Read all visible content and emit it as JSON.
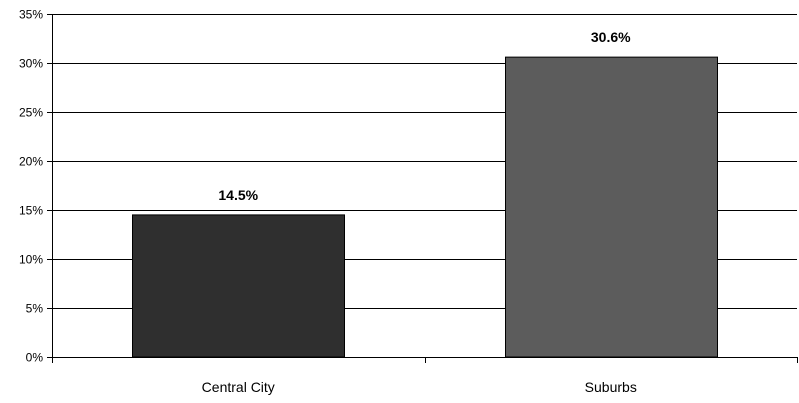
{
  "chart_data": {
    "type": "bar",
    "categories": [
      "Central City",
      "Suburbs"
    ],
    "values": [
      14.5,
      30.6
    ],
    "data_labels": [
      "14.5%",
      "30.6%"
    ],
    "y_ticks": [
      "0%",
      "5%",
      "10%",
      "15%",
      "20%",
      "25%",
      "30%",
      "35%"
    ],
    "ylim": [
      0,
      35
    ],
    "y_step": 5,
    "grid": true,
    "legend": false,
    "title": "",
    "xlabel": "",
    "ylabel": "",
    "bar_colors": [
      "#2f2f2f",
      "#5c5c5c"
    ],
    "grid_color": "#000000"
  }
}
